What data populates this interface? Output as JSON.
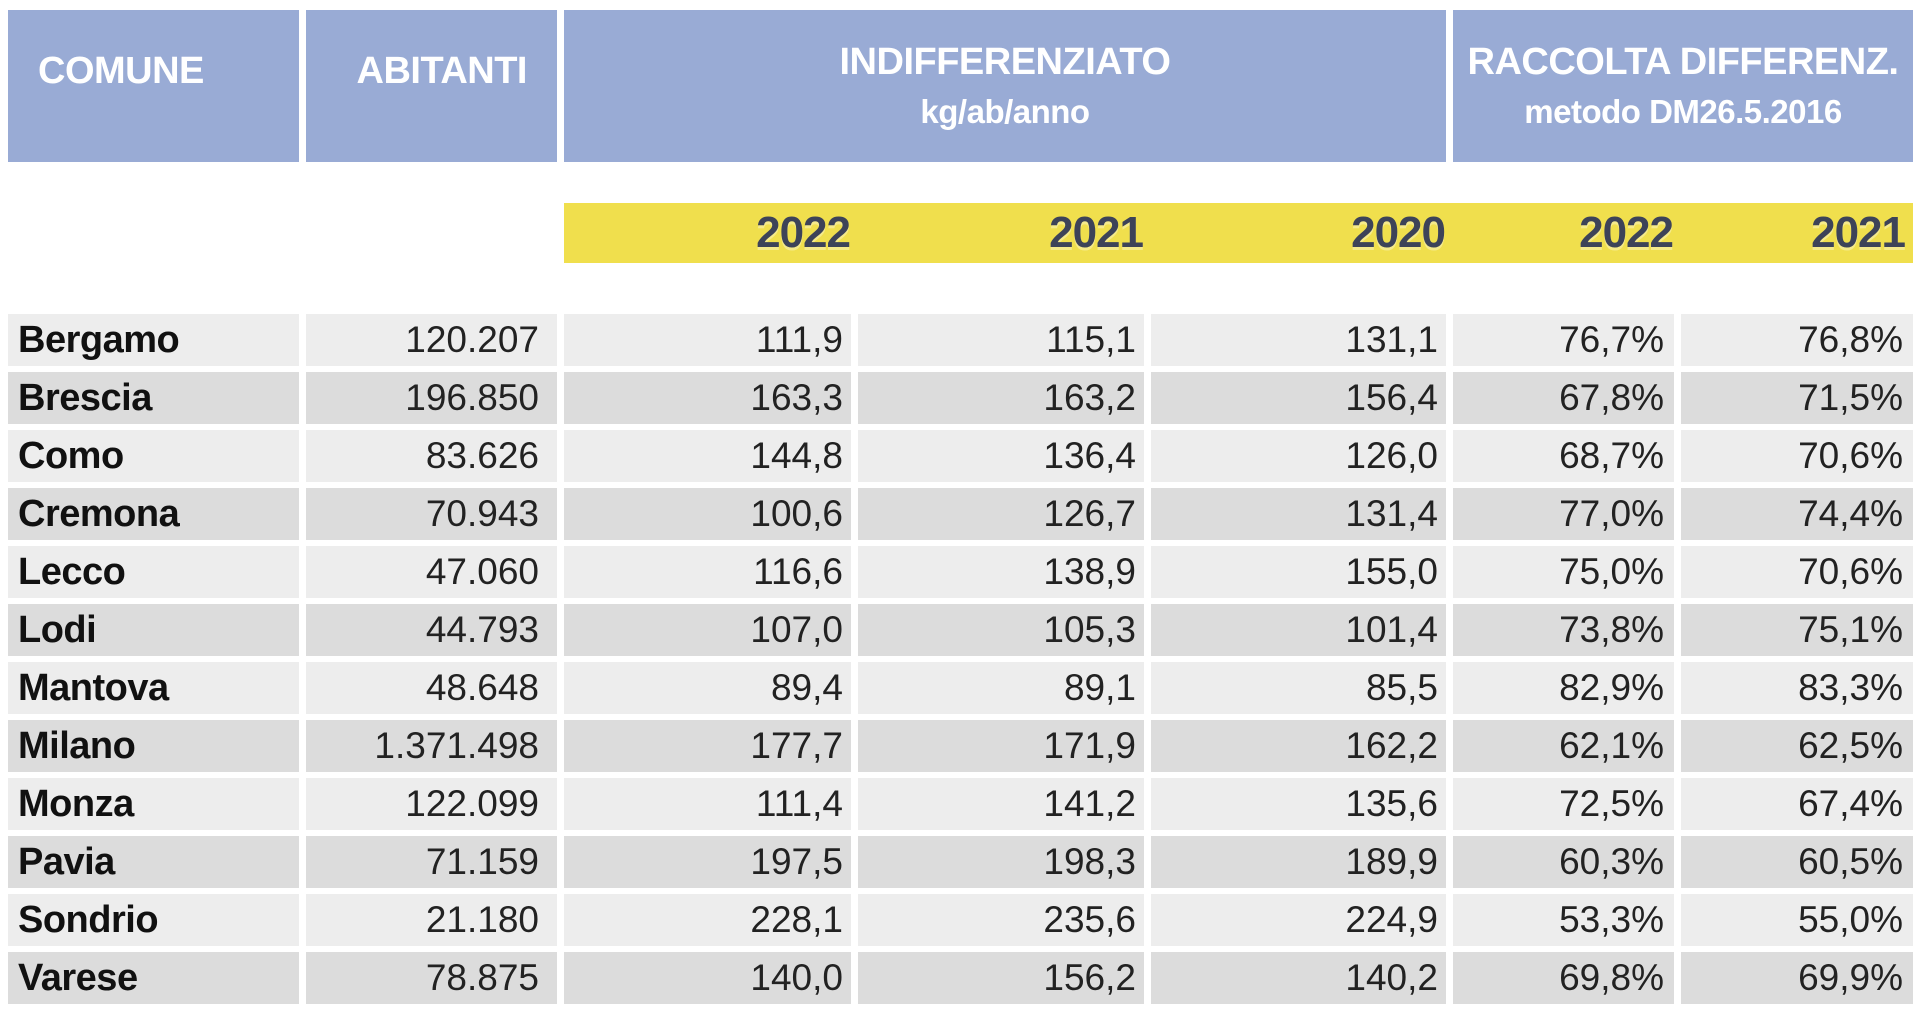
{
  "table": {
    "headers": {
      "comune": "COMUNE",
      "abitanti": "ABITANTI",
      "indifferenziato": {
        "title": "INDIFFERENZIATO",
        "subtitle": "kg/ab/anno"
      },
      "raccolta": {
        "title": "RACCOLTA DIFFERENZ.",
        "subtitle": "metodo DM26.5.2016"
      }
    },
    "year_columns": [
      "2022",
      "2021",
      "2020",
      "2022",
      "2021"
    ],
    "rows": [
      {
        "comune": "Bergamo",
        "abitanti": "120.207",
        "ind_2022": "111,9",
        "ind_2021": "115,1",
        "ind_2020": "131,1",
        "rd_2022": "76,7%",
        "rd_2021": "76,8%"
      },
      {
        "comune": "Brescia",
        "abitanti": "196.850",
        "ind_2022": "163,3",
        "ind_2021": "163,2",
        "ind_2020": "156,4",
        "rd_2022": "67,8%",
        "rd_2021": "71,5%"
      },
      {
        "comune": "Como",
        "abitanti": "83.626",
        "ind_2022": "144,8",
        "ind_2021": "136,4",
        "ind_2020": "126,0",
        "rd_2022": "68,7%",
        "rd_2021": "70,6%"
      },
      {
        "comune": "Cremona",
        "abitanti": "70.943",
        "ind_2022": "100,6",
        "ind_2021": "126,7",
        "ind_2020": "131,4",
        "rd_2022": "77,0%",
        "rd_2021": "74,4%"
      },
      {
        "comune": "Lecco",
        "abitanti": "47.060",
        "ind_2022": "116,6",
        "ind_2021": "138,9",
        "ind_2020": "155,0",
        "rd_2022": "75,0%",
        "rd_2021": "70,6%"
      },
      {
        "comune": "Lodi",
        "abitanti": "44.793",
        "ind_2022": "107,0",
        "ind_2021": "105,3",
        "ind_2020": "101,4",
        "rd_2022": "73,8%",
        "rd_2021": "75,1%"
      },
      {
        "comune": "Mantova",
        "abitanti": "48.648",
        "ind_2022": "89,4",
        "ind_2021": "89,1",
        "ind_2020": "85,5",
        "rd_2022": "82,9%",
        "rd_2021": "83,3%"
      },
      {
        "comune": "Milano",
        "abitanti": "1.371.498",
        "ind_2022": "177,7",
        "ind_2021": "171,9",
        "ind_2020": "162,2",
        "rd_2022": "62,1%",
        "rd_2021": "62,5%"
      },
      {
        "comune": "Monza",
        "abitanti": "122.099",
        "ind_2022": "111,4",
        "ind_2021": "141,2",
        "ind_2020": "135,6",
        "rd_2022": "72,5%",
        "rd_2021": "67,4%"
      },
      {
        "comune": "Pavia",
        "abitanti": "71.159",
        "ind_2022": "197,5",
        "ind_2021": "198,3",
        "ind_2020": "189,9",
        "rd_2022": "60,3%",
        "rd_2021": "60,5%"
      },
      {
        "comune": "Sondrio",
        "abitanti": "21.180",
        "ind_2022": "228,1",
        "ind_2021": "235,6",
        "ind_2020": "224,9",
        "rd_2022": "53,3%",
        "rd_2021": "55,0%"
      },
      {
        "comune": "Varese",
        "abitanti": "78.875",
        "ind_2022": "140,0",
        "ind_2021": "156,2",
        "ind_2020": "140,2",
        "rd_2022": "69,8%",
        "rd_2021": "69,9%"
      }
    ]
  },
  "colors": {
    "header_blue": "#99ABD5",
    "band_yellow": "#F0DF4D",
    "row_light": "#EDEDED",
    "row_dark": "#DCDCDC",
    "year_text": "#3D4358"
  },
  "chart_data": {
    "type": "table",
    "title": "",
    "columns": [
      "COMUNE",
      "ABITANTI",
      "INDIFFERENZIATO kg/ab/anno 2022",
      "INDIFFERENZIATO kg/ab/anno 2021",
      "INDIFFERENZIATO kg/ab/anno 2020",
      "RACCOLTA DIFFERENZ. metodo DM26.5.2016 2022",
      "RACCOLTA DIFFERENZ. metodo DM26.5.2016 2021"
    ],
    "rows": [
      [
        "Bergamo",
        "120.207",
        "111,9",
        "115,1",
        "131,1",
        "76,7%",
        "76,8%"
      ],
      [
        "Brescia",
        "196.850",
        "163,3",
        "163,2",
        "156,4",
        "67,8%",
        "71,5%"
      ],
      [
        "Como",
        "83.626",
        "144,8",
        "136,4",
        "126,0",
        "68,7%",
        "70,6%"
      ],
      [
        "Cremona",
        "70.943",
        "100,6",
        "126,7",
        "131,4",
        "77,0%",
        "74,4%"
      ],
      [
        "Lecco",
        "47.060",
        "116,6",
        "138,9",
        "155,0",
        "75,0%",
        "70,6%"
      ],
      [
        "Lodi",
        "44.793",
        "107,0",
        "105,3",
        "101,4",
        "73,8%",
        "75,1%"
      ],
      [
        "Mantova",
        "48.648",
        "89,4",
        "89,1",
        "85,5",
        "82,9%",
        "83,3%"
      ],
      [
        "Milano",
        "1.371.498",
        "177,7",
        "171,9",
        "162,2",
        "62,1%",
        "62,5%"
      ],
      [
        "Monza",
        "122.099",
        "111,4",
        "141,2",
        "135,6",
        "72,5%",
        "67,4%"
      ],
      [
        "Pavia",
        "71.159",
        "197,5",
        "198,3",
        "189,9",
        "60,3%",
        "60,5%"
      ],
      [
        "Sondrio",
        "21.180",
        "228,1",
        "235,6",
        "224,9",
        "53,3%",
        "55,0%"
      ],
      [
        "Varese",
        "78.875",
        "140,0",
        "156,2",
        "140,2",
        "69,8%",
        "69,9%"
      ]
    ]
  }
}
